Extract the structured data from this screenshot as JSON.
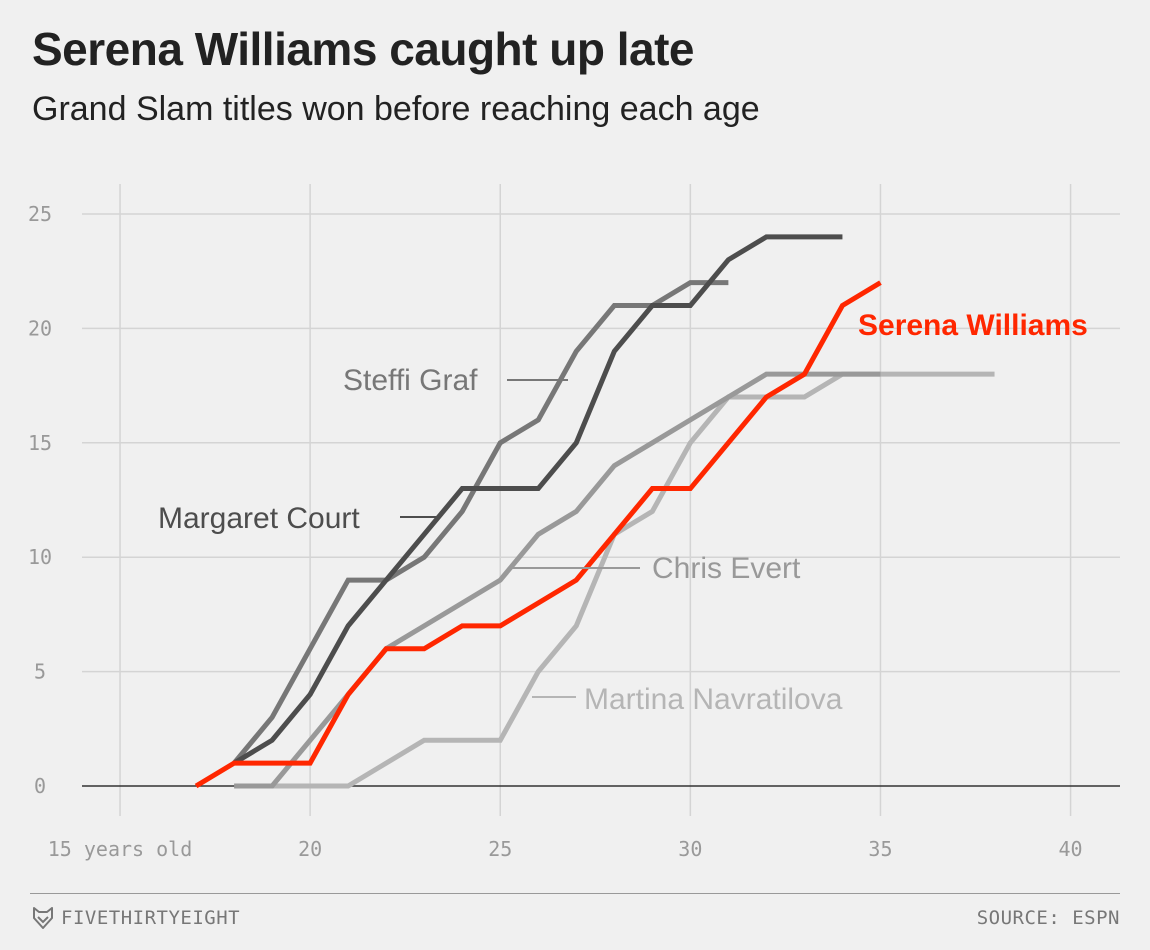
{
  "header": {
    "title": "Serena Williams caught up late",
    "subtitle": "Grand Slam titles won before reaching each age"
  },
  "footer": {
    "brand": "FIVETHIRTYEIGHT",
    "brand_icon": "fox-logo-icon",
    "source": "SOURCE: ESPN"
  },
  "chart_data": {
    "type": "line",
    "title": "Serena Williams caught up late",
    "subtitle": "Grand Slam titles won before reaching each age",
    "xlabel": "",
    "ylabel": "",
    "xlim": [
      14,
      41.3
    ],
    "ylim": [
      0,
      25
    ],
    "x_ticks": [
      15,
      20,
      25,
      30,
      35,
      40
    ],
    "x_tick_labels": [
      "15 years old",
      "20",
      "25",
      "30",
      "35",
      "40"
    ],
    "y_ticks": [
      0,
      5,
      10,
      15,
      20,
      25
    ],
    "y_tick_labels": [
      "0",
      "5",
      "10",
      "15",
      "20",
      "25"
    ],
    "grid": true,
    "legend": "direct labels",
    "series": [
      {
        "name": "Martina Navratilova",
        "color": "#b5b5b5",
        "x": [
          19,
          20,
          21,
          22,
          23,
          24,
          25,
          26,
          27,
          28,
          29,
          30,
          31,
          32,
          33,
          34,
          35,
          36,
          37,
          38
        ],
        "y": [
          0,
          0,
          0,
          1,
          2,
          2,
          2,
          5,
          7,
          11,
          12,
          15,
          17,
          17,
          17,
          18,
          18,
          18,
          18,
          18
        ]
      },
      {
        "name": "Chris Evert",
        "color": "#999999",
        "x": [
          18,
          19,
          20,
          21,
          22,
          23,
          24,
          25,
          26,
          27,
          28,
          29,
          30,
          31,
          32,
          33,
          34,
          35
        ],
        "y": [
          0,
          0,
          2,
          4,
          6,
          7,
          8,
          9,
          11,
          12,
          14,
          15,
          16,
          17,
          18,
          18,
          18,
          18
        ]
      },
      {
        "name": "Steffi Graf",
        "color": "#777777",
        "x": [
          18,
          19,
          20,
          21,
          22,
          23,
          24,
          25,
          26,
          27,
          28,
          29,
          30,
          31
        ],
        "y": [
          1,
          3,
          6,
          9,
          9,
          10,
          12,
          15,
          16,
          19,
          21,
          21,
          22,
          22
        ]
      },
      {
        "name": "Margaret Court",
        "color": "#4d4d4d",
        "x": [
          18,
          19,
          20,
          21,
          22,
          23,
          24,
          25,
          26,
          27,
          28,
          29,
          30,
          31,
          32,
          33,
          34
        ],
        "y": [
          1,
          2,
          4,
          7,
          9,
          11,
          13,
          13,
          13,
          15,
          19,
          21,
          21,
          23,
          24,
          24,
          24
        ]
      },
      {
        "name": "Serena Williams",
        "color": "#ff2700",
        "x": [
          17,
          18,
          19,
          20,
          21,
          22,
          23,
          24,
          25,
          26,
          27,
          28,
          29,
          30,
          31,
          32,
          33,
          34,
          35
        ],
        "y": [
          0,
          1,
          1,
          1,
          4,
          6,
          6,
          7,
          7,
          8,
          9,
          11,
          13,
          13,
          15,
          17,
          18,
          21,
          22
        ]
      }
    ]
  }
}
